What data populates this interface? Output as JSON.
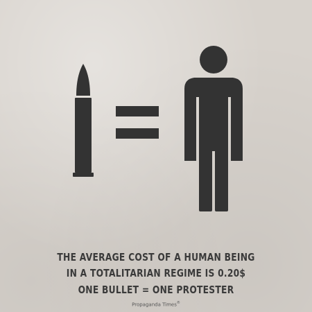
{
  "poster": {
    "colors": {
      "background": "#d8d3cd",
      "ink": "#333333",
      "caption": "#3a3a3a"
    },
    "icons": {
      "left": "bullet-icon",
      "middle": "equals-icon",
      "right": "person-icon"
    },
    "caption": {
      "line1": "THE AVERAGE COST OF A HUMAN BEING",
      "line2": "IN A TOTALITARIAN REGIME IS 0.20$",
      "line3": "ONE BULLET = ONE PROTESTER"
    },
    "brand": {
      "name": "Propaganda Times",
      "mark": "®"
    }
  }
}
